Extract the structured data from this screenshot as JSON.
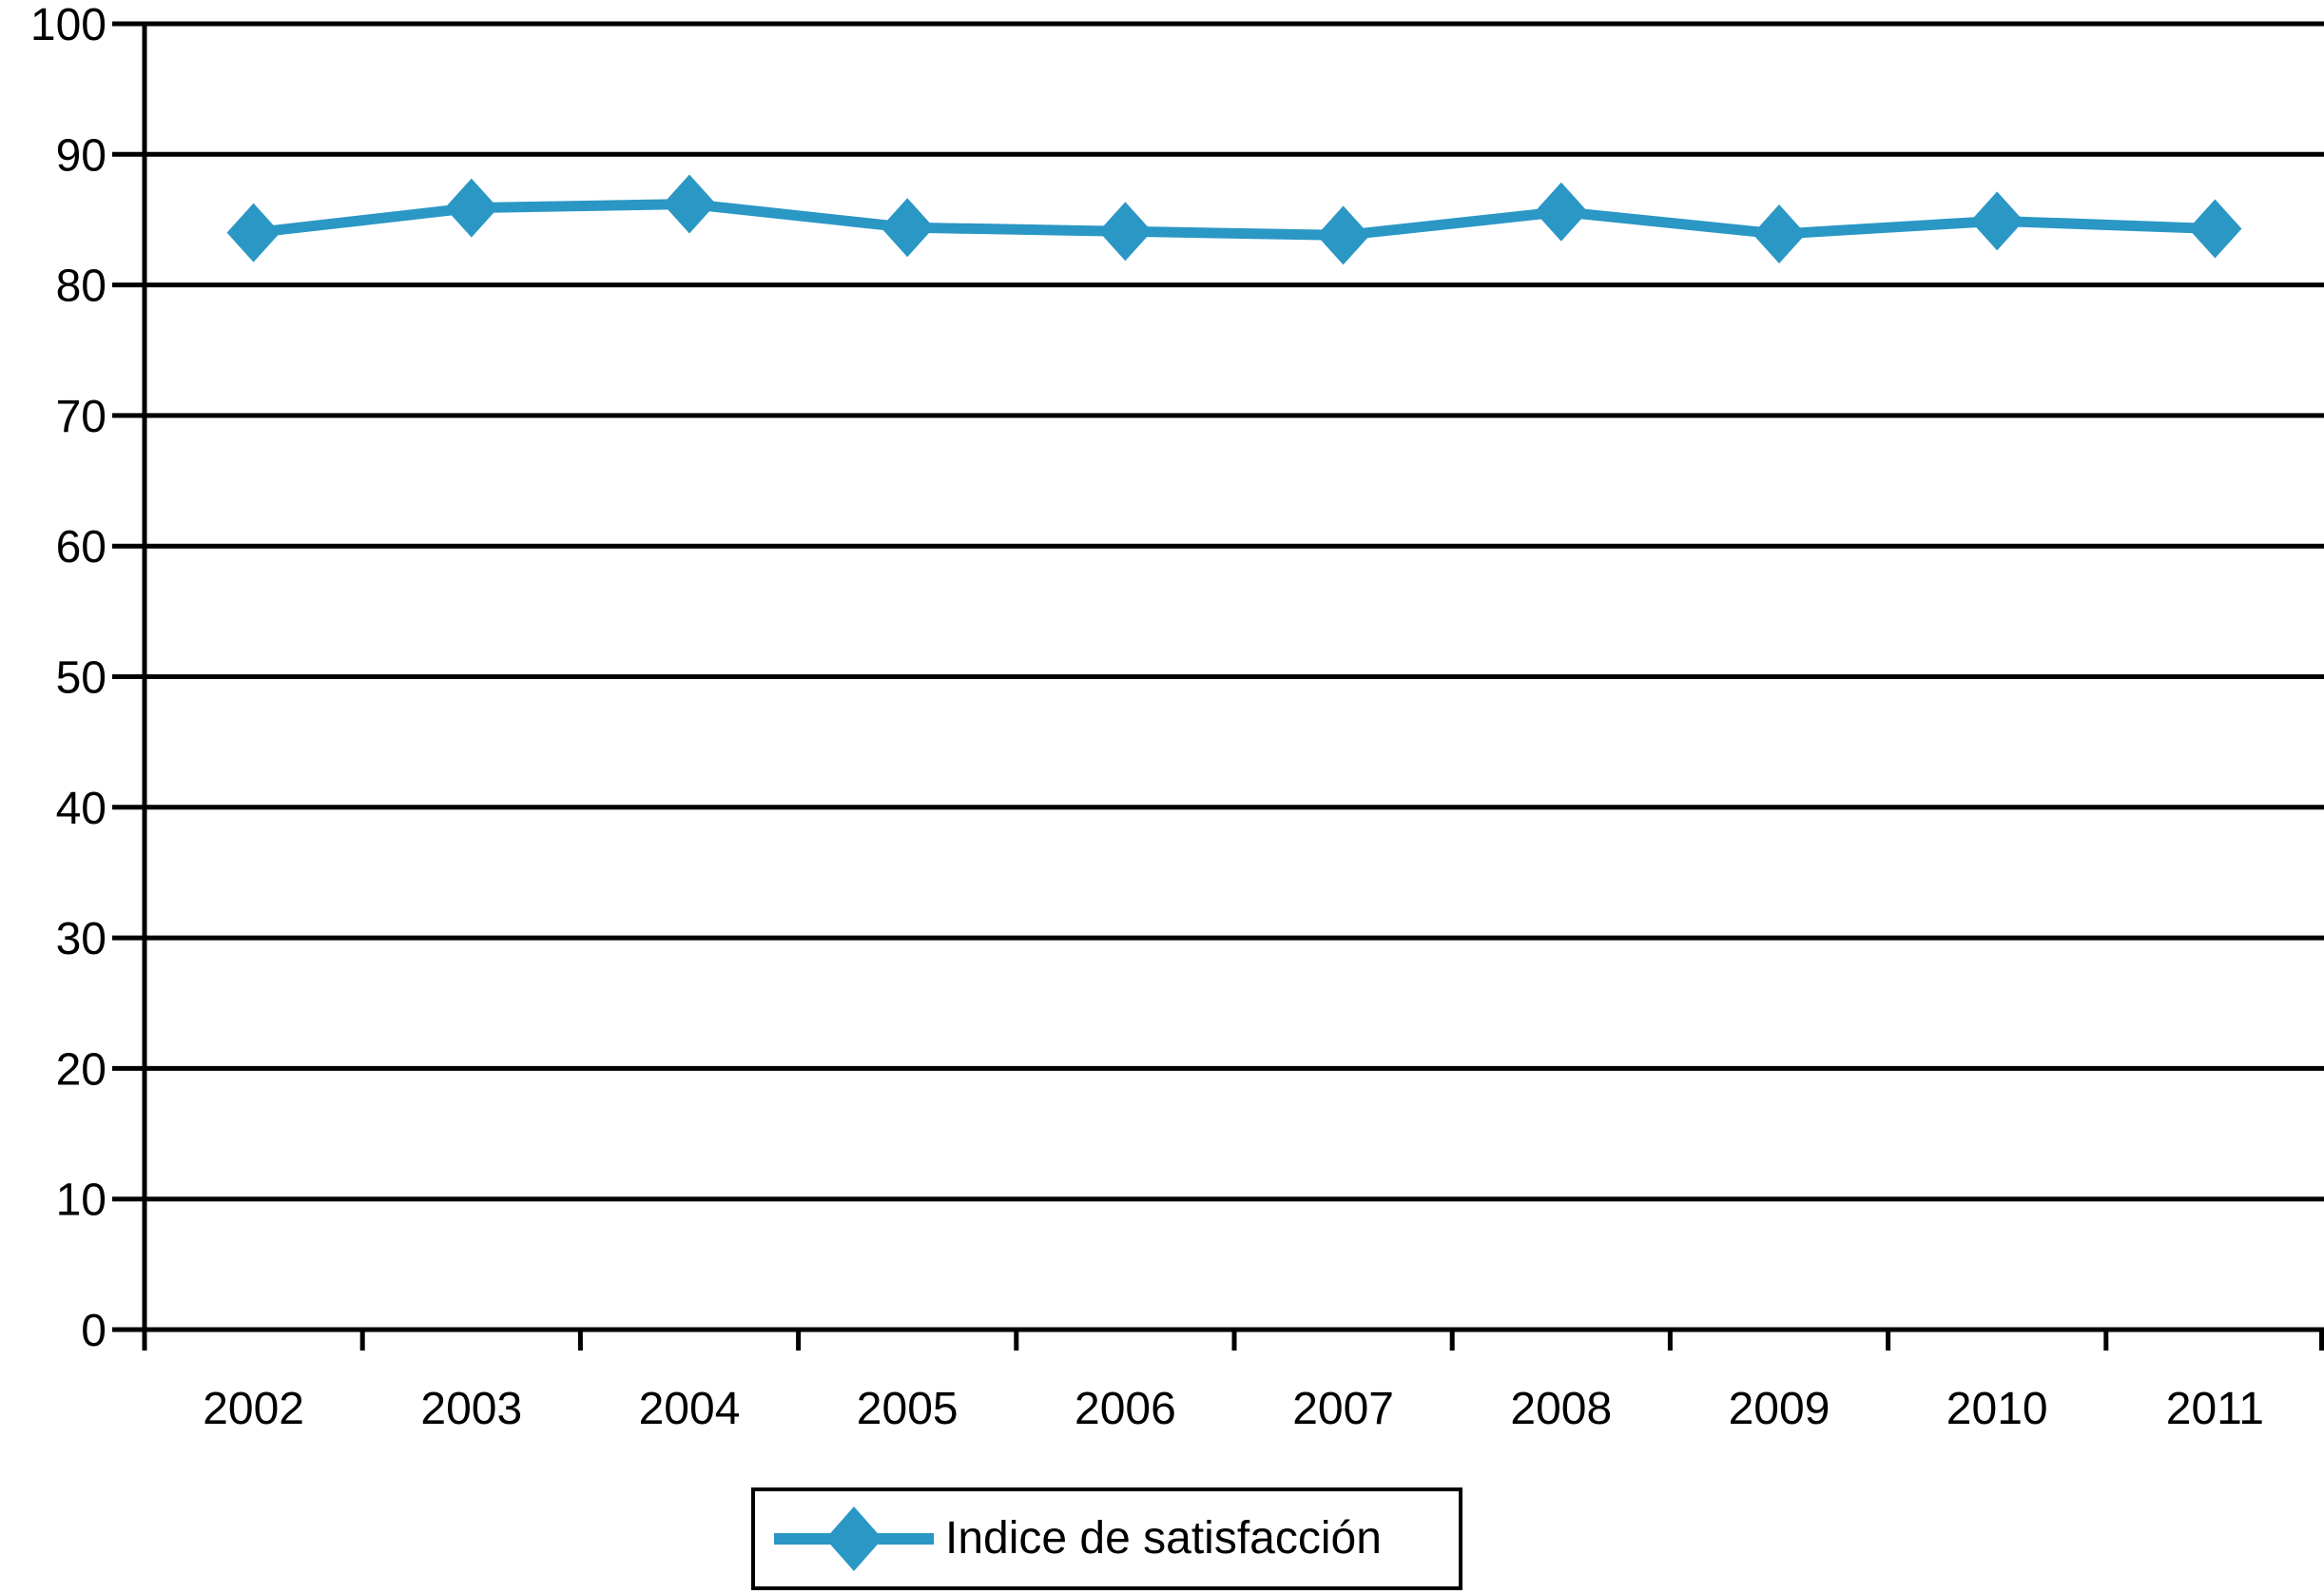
{
  "chart_data": {
    "type": "line",
    "title": "",
    "categories": [
      "2002",
      "2003",
      "2004",
      "2005",
      "2006",
      "2007",
      "2008",
      "2009",
      "2010",
      "2011"
    ],
    "series": [
      {
        "name": "Indice de satisfacción",
        "values": [
          84.0,
          85.9,
          86.2,
          84.4,
          84.1,
          83.8,
          85.6,
          83.9,
          84.9,
          84.3
        ],
        "color": "#2A97C5",
        "marker": "diamond"
      }
    ],
    "xlabel": "",
    "ylabel": "",
    "ylim": [
      0,
      100
    ],
    "yticks": [
      0,
      10,
      20,
      30,
      40,
      50,
      60,
      70,
      80,
      90,
      100
    ],
    "ytick_interval": 10,
    "grid": "horizontal",
    "axis_color": "#000000",
    "background_color": "#FFFFFF",
    "legend_position": "bottom-center"
  }
}
